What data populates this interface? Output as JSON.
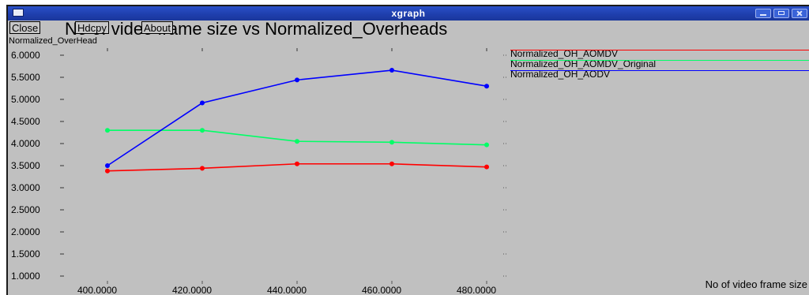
{
  "window": {
    "title": "xgraph"
  },
  "toolbar": {
    "close_label": "Close",
    "hdcpy_label": "Hdcpy",
    "about_label": "About"
  },
  "chart_data": {
    "type": "line",
    "title": "No of video frame size vs Normalized_Overheads",
    "ylabel": "Normalized_OverHead",
    "xlabel": "No of video frame size",
    "x": [
      400,
      420,
      440,
      460,
      480
    ],
    "x_tick_labels": [
      "400.0000",
      "420.0000",
      "440.0000",
      "460.0000",
      "480.0000"
    ],
    "y_tick_labels": [
      "1.0000",
      "1.5000",
      "2.0000",
      "2.5000",
      "3.0000",
      "3.5000",
      "4.0000",
      "4.5000",
      "5.0000",
      "5.5000",
      "6.0000"
    ],
    "y_ticks": [
      1.0,
      1.5,
      2.0,
      2.5,
      3.0,
      3.5,
      4.0,
      4.5,
      5.0,
      5.5,
      6.0
    ],
    "xlim": [
      400,
      480
    ],
    "ylim": [
      1.0,
      6.0
    ],
    "grid": false,
    "legend_position": "top-right",
    "series": [
      {
        "name": "Normalized_OH_AOMDV",
        "color": "#ff0000",
        "values": [
          3.38,
          3.44,
          3.54,
          3.54,
          3.47
        ]
      },
      {
        "name": "Normalized_OH_AOMDV_Original",
        "color": "#00ff66",
        "values": [
          4.3,
          4.3,
          4.05,
          4.03,
          3.97
        ]
      },
      {
        "name": "Normalized_OH_AODV",
        "color": "#0000ff",
        "values": [
          3.5,
          4.92,
          5.44,
          5.66,
          5.3
        ]
      }
    ]
  }
}
